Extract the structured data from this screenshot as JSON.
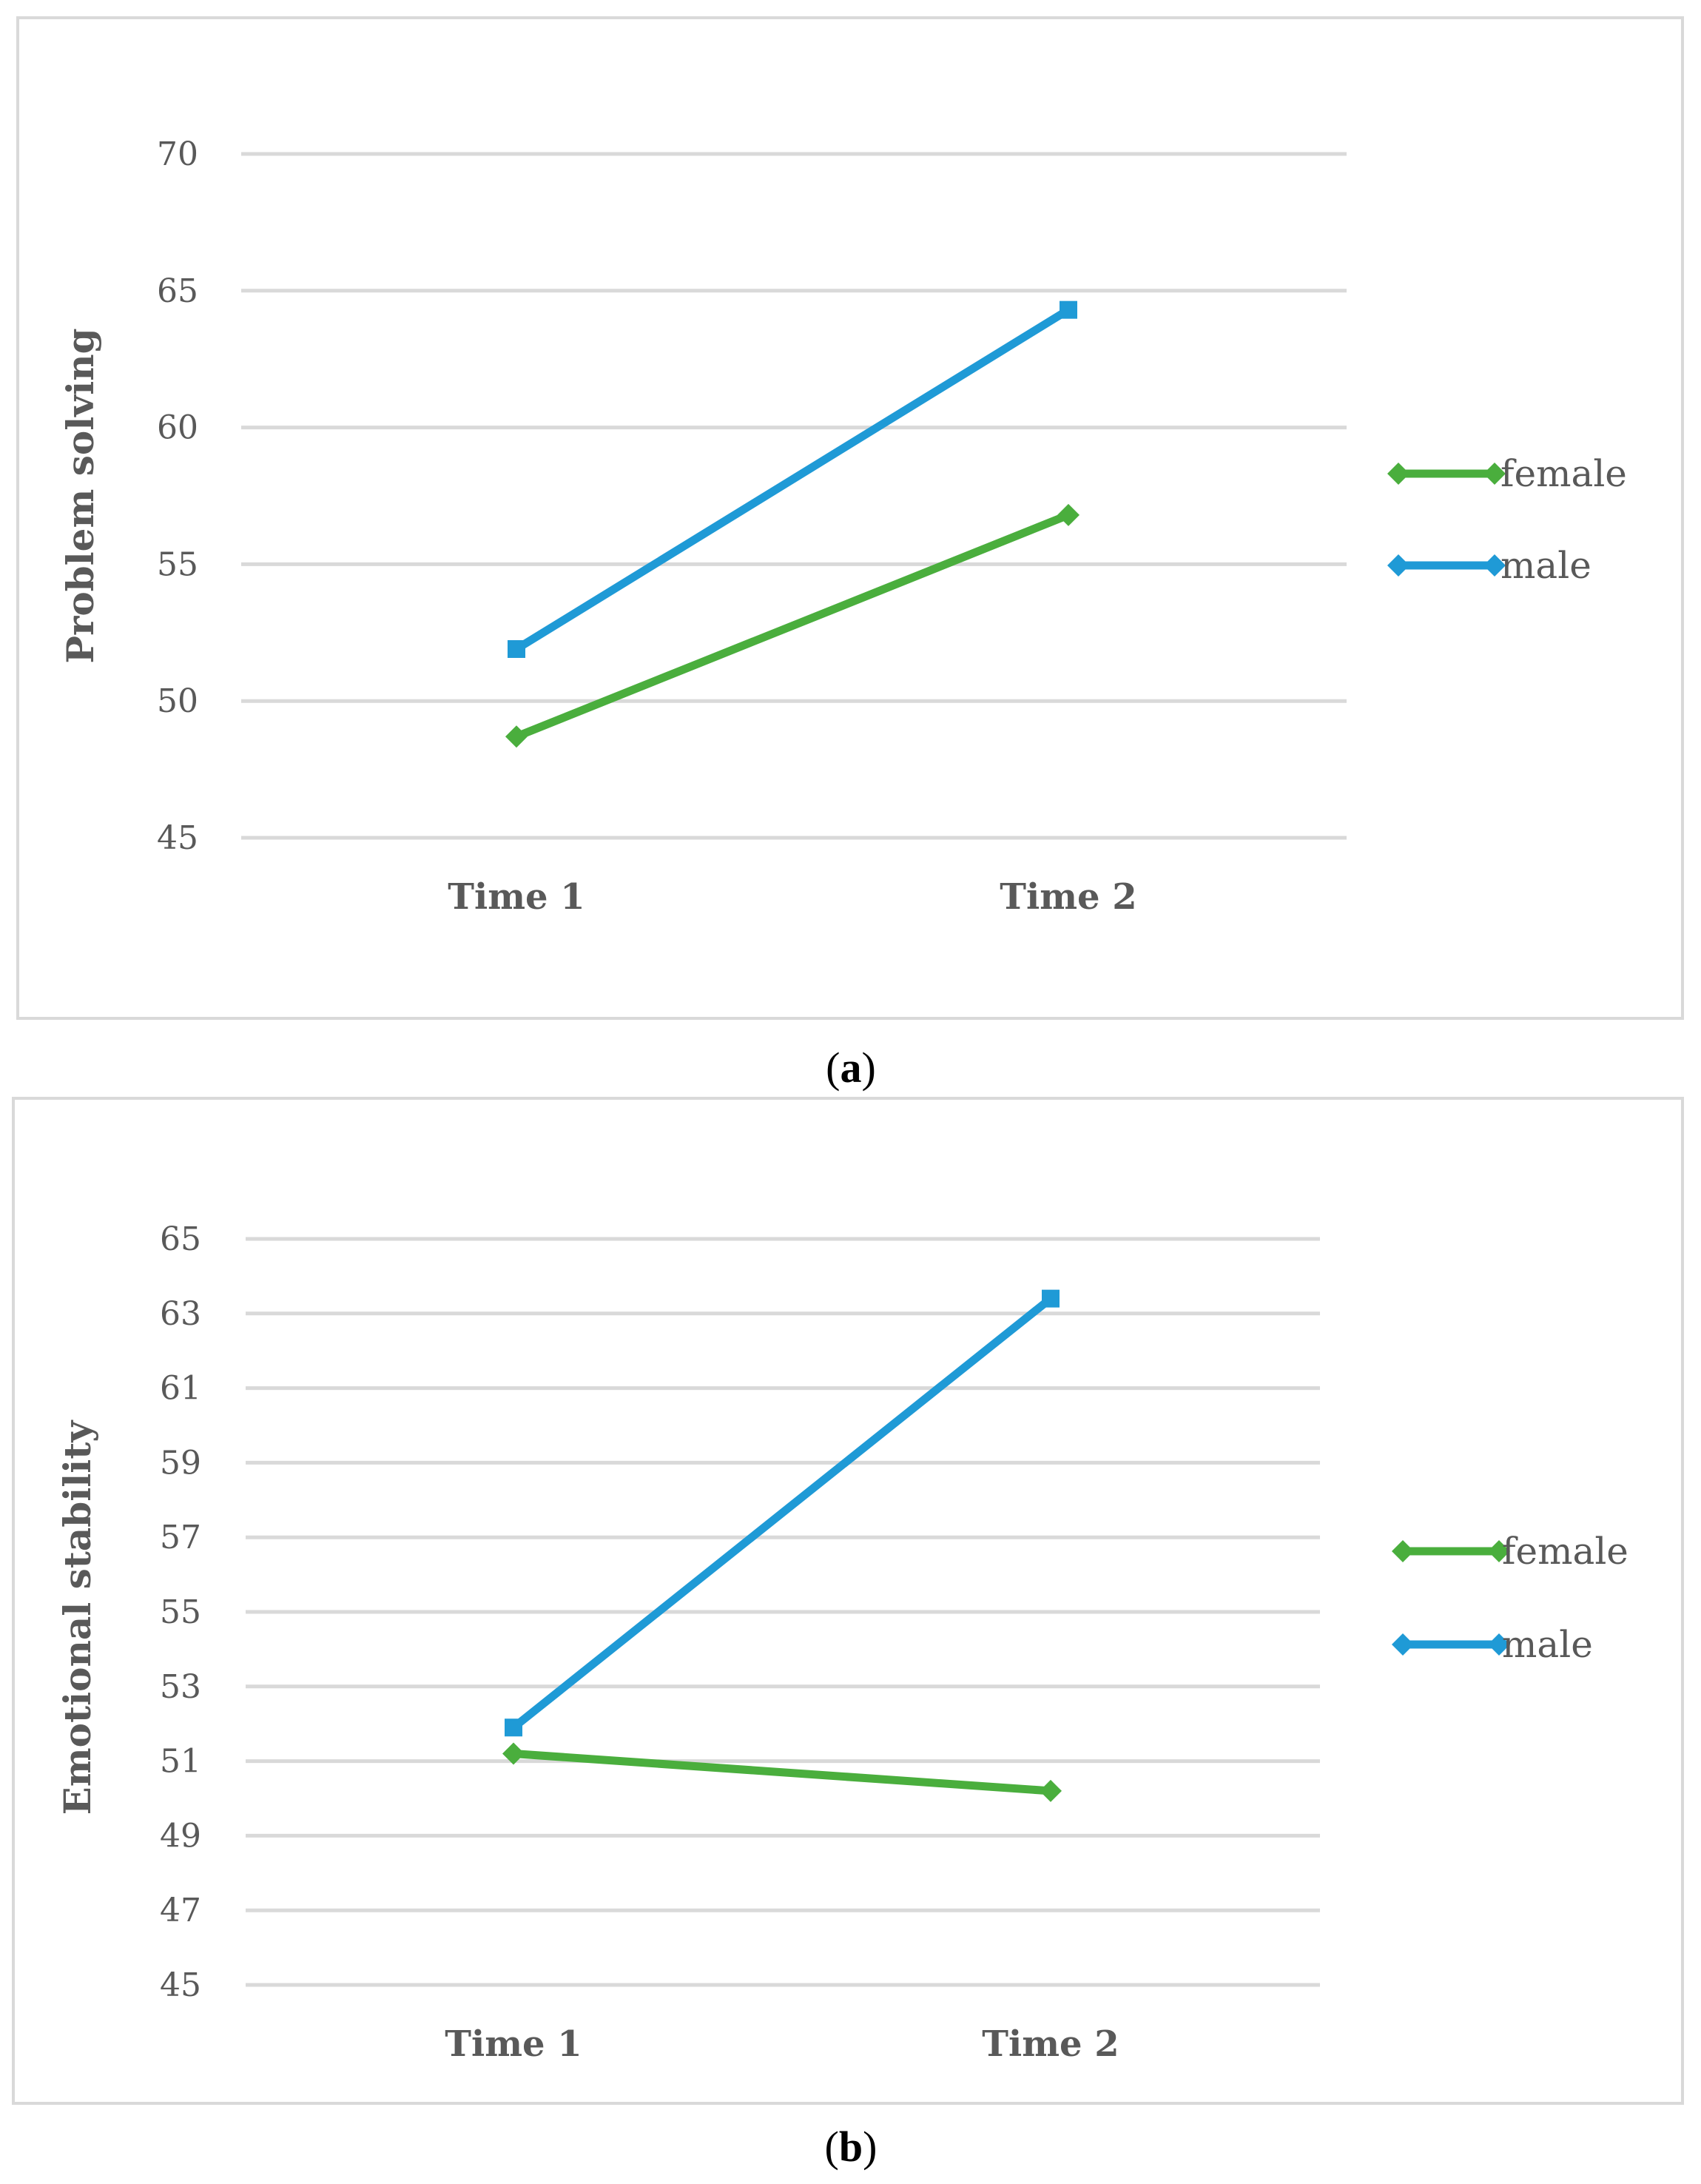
{
  "chart_data": [
    {
      "type": "line",
      "panel": "a",
      "caption": {
        "open": "(",
        "letter": "a",
        "close": ")"
      },
      "title": "",
      "xlabel": "",
      "ylabel": "Problem solving",
      "categories": [
        "Time 1",
        "Time 2"
      ],
      "ylim": [
        45,
        70
      ],
      "yticks": [
        45,
        50,
        55,
        60,
        65,
        70
      ],
      "grid": true,
      "legend": "right",
      "series": [
        {
          "name": "female",
          "color": "#4aae3d",
          "marker": "diamond",
          "values": [
            48.7,
            56.8
          ]
        },
        {
          "name": "male",
          "color": "#1f9ad6",
          "marker": "square",
          "values": [
            51.9,
            64.3
          ]
        }
      ]
    },
    {
      "type": "line",
      "panel": "b",
      "caption": {
        "open": "(",
        "letter": "b",
        "close": ")"
      },
      "title": "",
      "xlabel": "",
      "ylabel": "Emotional stability",
      "categories": [
        "Time 1",
        "Time 2"
      ],
      "ylim": [
        45,
        65
      ],
      "yticks": [
        45,
        47,
        49,
        51,
        53,
        55,
        57,
        59,
        61,
        63,
        65
      ],
      "grid": true,
      "legend": "right",
      "series": [
        {
          "name": "female",
          "color": "#4aae3d",
          "marker": "diamond",
          "values": [
            51.2,
            50.2
          ]
        },
        {
          "name": "male",
          "color": "#1f9ad6",
          "marker": "square",
          "values": [
            51.9,
            63.4
          ]
        }
      ]
    }
  ]
}
